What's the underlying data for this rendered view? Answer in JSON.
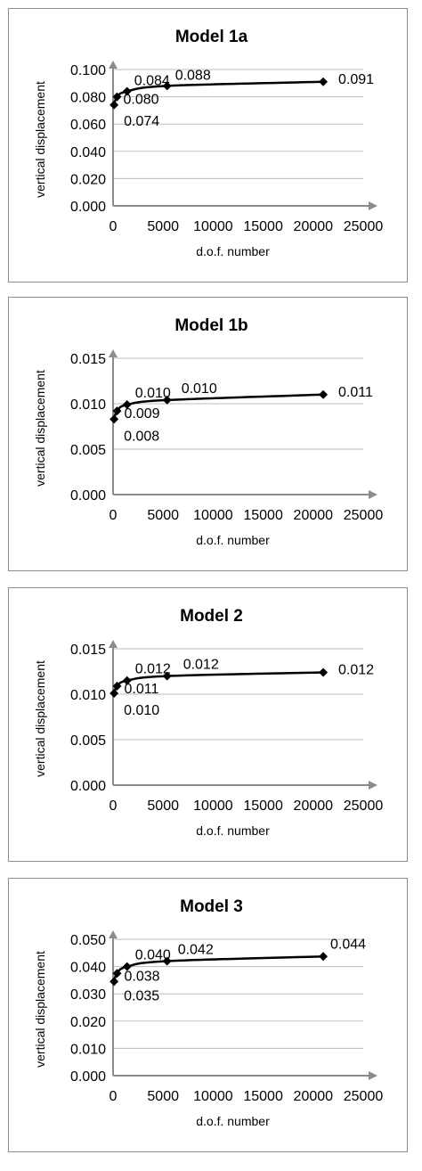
{
  "chart_data": [
    {
      "type": "line",
      "title": "Model 1a",
      "xlabel": "d.o.f. number",
      "ylabel": "vertical displacement",
      "xlim": [
        0,
        25000
      ],
      "ylim": [
        0,
        0.1
      ],
      "xticks": [
        "0",
        "5000",
        "10000",
        "15000",
        "20000",
        "25000"
      ],
      "yticks": [
        "0.000",
        "0.020",
        "0.040",
        "0.060",
        "0.080",
        "0.100"
      ],
      "grid": true,
      "legend": "none",
      "series": [
        {
          "x": [
            100,
            400,
            1400,
            5400,
            21000
          ],
          "values": [
            0.074,
            0.08,
            0.084,
            0.088,
            0.091
          ],
          "labels": [
            "0.074",
            "0.080",
            "0.084",
            "0.088",
            "0.091"
          ]
        }
      ]
    },
    {
      "type": "line",
      "title": "Model 1b",
      "xlabel": "d.o.f. number",
      "ylabel": "vertical displacement",
      "xlim": [
        0,
        25000
      ],
      "ylim": [
        0,
        0.015
      ],
      "xticks": [
        "0",
        "5000",
        "10000",
        "15000",
        "20000",
        "25000"
      ],
      "yticks": [
        "0.000",
        "0.005",
        "0.010",
        "0.015"
      ],
      "grid": true,
      "legend": "none",
      "series": [
        {
          "x": [
            100,
            400,
            1400,
            5400,
            21000
          ],
          "values": [
            0.0083,
            0.0092,
            0.0099,
            0.0104,
            0.011
          ],
          "labels": [
            "0.008",
            "0.009",
            "0.010",
            "0.010",
            "0.011"
          ]
        }
      ]
    },
    {
      "type": "line",
      "title": "Model 2",
      "xlabel": "d.o.f. number",
      "ylabel": "vertical displacement",
      "xlim": [
        0,
        25000
      ],
      "ylim": [
        0,
        0.015
      ],
      "xticks": [
        "0",
        "5000",
        "10000",
        "15000",
        "20000",
        "25000"
      ],
      "yticks": [
        "0.000",
        "0.005",
        "0.010",
        "0.015"
      ],
      "grid": true,
      "legend": "none",
      "series": [
        {
          "x": [
            100,
            400,
            1400,
            5400,
            21000
          ],
          "values": [
            0.0101,
            0.0109,
            0.0115,
            0.012,
            0.0124
          ],
          "labels": [
            "0.010",
            "0.011",
            "0.012",
            "0.012",
            "0.012"
          ]
        }
      ]
    },
    {
      "type": "line",
      "title": "Model 3",
      "xlabel": "d.o.f. number",
      "ylabel": "vertical displacement",
      "xlim": [
        0,
        25000
      ],
      "ylim": [
        0,
        0.05
      ],
      "xticks": [
        "0",
        "5000",
        "10000",
        "15000",
        "20000",
        "25000"
      ],
      "yticks": [
        "0.000",
        "0.010",
        "0.020",
        "0.030",
        "0.040",
        "0.050"
      ],
      "grid": true,
      "legend": "none",
      "series": [
        {
          "x": [
            100,
            400,
            1400,
            5400,
            21000
          ],
          "values": [
            0.0345,
            0.0375,
            0.04,
            0.042,
            0.0437
          ],
          "labels": [
            "0.035",
            "0.038",
            "0.040",
            "0.042",
            "0.044"
          ]
        }
      ]
    }
  ],
  "colors": {
    "axis": "#8c8c8c",
    "grid": "#bdbdbd",
    "series": "#000000",
    "border": "#8c8c8c"
  }
}
